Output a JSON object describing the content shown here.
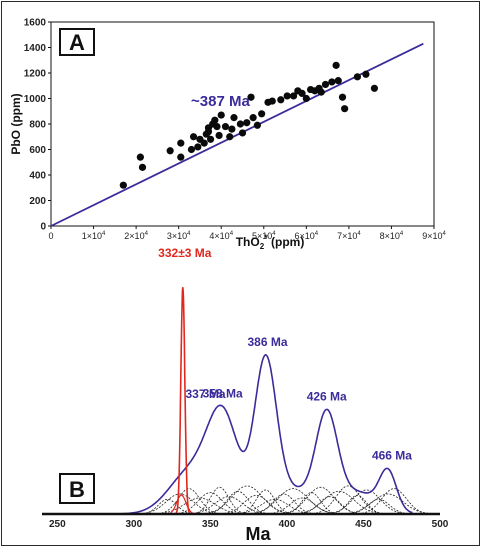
{
  "chart_data": [
    {
      "panel": "A",
      "type": "scatter",
      "xlabel": "ThO",
      "xlabel_sub": "2",
      "xlabel_sup": "*",
      "xlabel_unit": " (ppm)",
      "ylabel": "PbO (ppm)",
      "xlim": [
        0,
        90000
      ],
      "ylim": [
        0,
        1600
      ],
      "xticks": [
        {
          "v": 0,
          "base": "0",
          "exp": ""
        },
        {
          "v": 10000,
          "base": "1×10",
          "exp": "4"
        },
        {
          "v": 20000,
          "base": "2×10",
          "exp": "4"
        },
        {
          "v": 30000,
          "base": "3×10",
          "exp": "4"
        },
        {
          "v": 40000,
          "base": "4×10",
          "exp": "4"
        },
        {
          "v": 50000,
          "base": "5×10",
          "exp": "4"
        },
        {
          "v": 60000,
          "base": "6×10",
          "exp": "4"
        },
        {
          "v": 70000,
          "base": "7×10",
          "exp": "4"
        },
        {
          "v": 80000,
          "base": "8×10",
          "exp": "4"
        },
        {
          "v": 90000,
          "base": "9×10",
          "exp": "4"
        }
      ],
      "yticks": [
        "0",
        "200",
        "400",
        "600",
        "800",
        "1000",
        "1200",
        "1400",
        "1600"
      ],
      "fit_line": {
        "x": [
          0,
          87500
        ],
        "y": [
          0,
          1430
        ],
        "label": "~387 Ma",
        "color": "#3a2c9a"
      },
      "points": [
        [
          17000,
          320
        ],
        [
          21000,
          540
        ],
        [
          21500,
          460
        ],
        [
          28000,
          590
        ],
        [
          30500,
          650
        ],
        [
          30500,
          540
        ],
        [
          33000,
          600
        ],
        [
          33500,
          700
        ],
        [
          34500,
          620
        ],
        [
          35000,
          680
        ],
        [
          36000,
          650
        ],
        [
          36500,
          720
        ],
        [
          37000,
          770
        ],
        [
          37000,
          740
        ],
        [
          37500,
          680
        ],
        [
          38000,
          800
        ],
        [
          38500,
          830
        ],
        [
          39000,
          780
        ],
        [
          39500,
          710
        ],
        [
          40000,
          870
        ],
        [
          41000,
          780
        ],
        [
          42000,
          700
        ],
        [
          42500,
          760
        ],
        [
          43000,
          850
        ],
        [
          44500,
          800
        ],
        [
          45000,
          730
        ],
        [
          46000,
          810
        ],
        [
          47000,
          1010
        ],
        [
          47500,
          850
        ],
        [
          48500,
          790
        ],
        [
          49500,
          880
        ],
        [
          51000,
          970
        ],
        [
          52000,
          980
        ],
        [
          54000,
          990
        ],
        [
          55500,
          1020
        ],
        [
          57000,
          1020
        ],
        [
          58000,
          1060
        ],
        [
          59000,
          1040
        ],
        [
          60000,
          1000
        ],
        [
          61000,
          1070
        ],
        [
          62000,
          1060
        ],
        [
          63000,
          1080
        ],
        [
          63500,
          1050
        ],
        [
          64500,
          1110
        ],
        [
          66000,
          1130
        ],
        [
          67000,
          1260
        ],
        [
          67500,
          1140
        ],
        [
          68500,
          1010
        ],
        [
          69000,
          920
        ],
        [
          72000,
          1170
        ],
        [
          74000,
          1190
        ],
        [
          76000,
          1080
        ]
      ],
      "point_color": "#0a0a0a"
    },
    {
      "panel": "B",
      "type": "line",
      "xlabel": "Ma",
      "xlim": [
        240,
        500
      ],
      "xticks": [
        "250",
        "300",
        "350",
        "400",
        "450",
        "500"
      ],
      "envelope_color": "#3a2c9a",
      "component_color": "#222222",
      "highlight_color": "#e0281e",
      "peaks": [
        {
          "age": 337,
          "label": "337 Ma",
          "height": 0.26
        },
        {
          "age": 358,
          "label": "358 Ma",
          "height": 0.34
        },
        {
          "age": 386,
          "label": "386 Ma",
          "height": 0.42
        },
        {
          "age": 426,
          "label": "426 Ma",
          "height": 0.3
        },
        {
          "age": 466,
          "label": "466 Ma",
          "height": 0.16
        }
      ],
      "highlight": {
        "age": 332,
        "label": "332±3 Ma"
      }
    }
  ],
  "panel_labels": {
    "a": "A",
    "b": "B"
  }
}
